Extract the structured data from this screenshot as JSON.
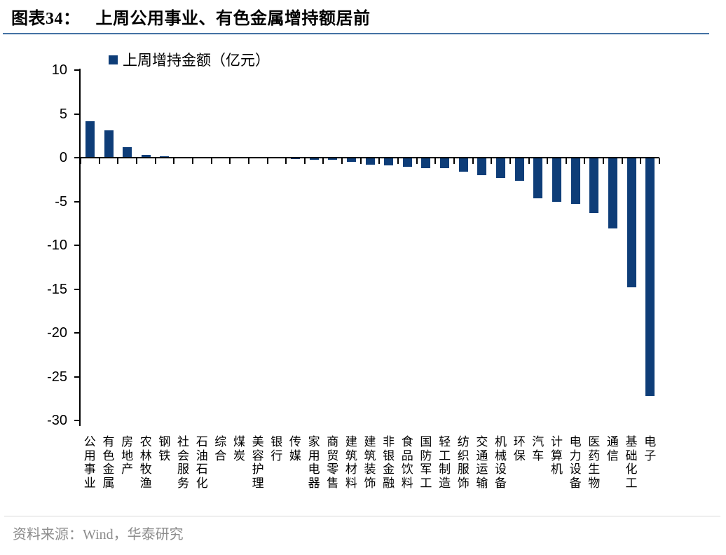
{
  "header": {
    "prefix": "图表34：",
    "title": "上周公用事业、有色金属增持额居前"
  },
  "footer": {
    "source": "资料来源：Wind，华泰研究"
  },
  "colors": {
    "bar": "#0E3D78",
    "title_rule": "#4472A4",
    "axis": "#000000",
    "footer_text": "#8C8C8C",
    "footer_rule": "#D9D9D9"
  },
  "chart_data": {
    "type": "bar",
    "title": "图表34： 上周公用事业、有色金属增持额居前",
    "legend": "上周增持金额（亿元）",
    "categories": [
      "公用事业",
      "有色金属",
      "房地产",
      "农林牧渔",
      "钢铁",
      "社会服务",
      "石油石化",
      "综合",
      "煤炭",
      "美容护理",
      "银行",
      "传媒",
      "家用电器",
      "商贸零售",
      "建筑材料",
      "建筑装饰",
      "非银金融",
      "食品饮料",
      "国防军工",
      "轻工制造",
      "纺织服饰",
      "交通运输",
      "机械设备",
      "环保",
      "汽车",
      "计算机",
      "电力设备",
      "医药生物",
      "通信",
      "基础化工",
      "电子"
    ],
    "values": [
      4.2,
      3.1,
      1.2,
      0.3,
      0.2,
      0.05,
      0.03,
      -0.03,
      -0.05,
      -0.05,
      -0.1,
      -0.15,
      -0.2,
      -0.25,
      -0.5,
      -0.8,
      -0.9,
      -1.0,
      -1.2,
      -1.2,
      -1.6,
      -2.0,
      -2.3,
      -2.6,
      -4.6,
      -5.0,
      -5.3,
      -6.3,
      -8.1,
      -14.8,
      -27.2
    ],
    "xlabel": "",
    "ylabel": "",
    "ylim": [
      -30,
      10
    ],
    "ytick_step": 5,
    "grid": false,
    "legend_position": "top-left"
  }
}
